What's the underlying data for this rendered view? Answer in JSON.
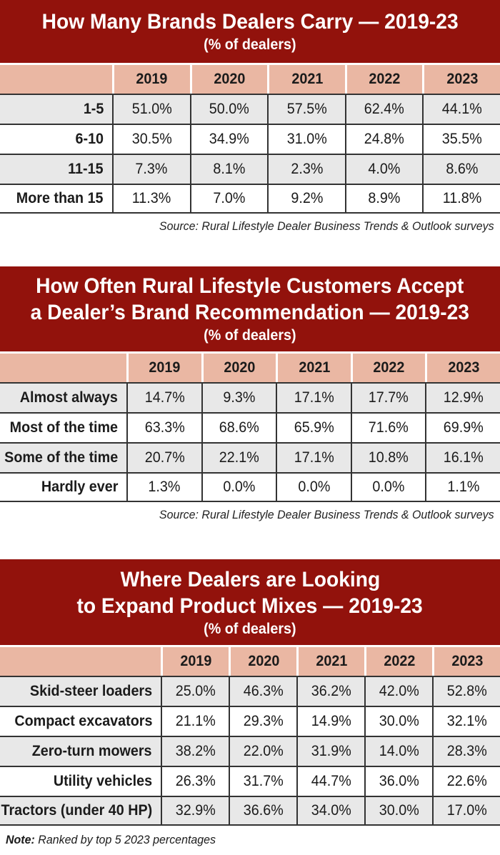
{
  "colors": {
    "banner_red": "#92120C",
    "header_salmon": "#EAB7A3",
    "row_gray": "#E8E8E8",
    "row_white": "#FFFFFF",
    "border_dark": "#333333",
    "banner_text": "#FFFFFF",
    "body_text": "#1B1B1B"
  },
  "tables": [
    {
      "title_lines": [
        "How Many Brands Dealers Carry — 2019-23"
      ],
      "subtitle": "(% of dealers)",
      "columns": [
        "",
        "2019",
        "2020",
        "2021",
        "2022",
        "2023"
      ],
      "rows": [
        {
          "label": "1-5",
          "values": [
            "51.0%",
            "50.0%",
            "57.5%",
            "62.4%",
            "44.1%"
          ]
        },
        {
          "label": "6-10",
          "values": [
            "30.5%",
            "34.9%",
            "31.0%",
            "24.8%",
            "35.5%"
          ]
        },
        {
          "label": "11-15",
          "values": [
            "7.3%",
            "8.1%",
            "2.3%",
            "4.0%",
            "8.6%"
          ]
        },
        {
          "label": "More than 15",
          "values": [
            "11.3%",
            "7.0%",
            "9.2%",
            "8.9%",
            "11.8%"
          ]
        }
      ],
      "source": "Source: Rural Lifestyle Dealer Business Trends & Outlook surveys"
    },
    {
      "title_lines": [
        "How Often Rural Lifestyle Customers Accept",
        "a Dealer’s Brand Recommendation — 2019-23"
      ],
      "subtitle": "(% of dealers)",
      "columns": [
        "",
        "2019",
        "2020",
        "2021",
        "2022",
        "2023"
      ],
      "rows": [
        {
          "label": "Almost always",
          "values": [
            "14.7%",
            "9.3%",
            "17.1%",
            "17.7%",
            "12.9%"
          ]
        },
        {
          "label": "Most of the time",
          "values": [
            "63.3%",
            "68.6%",
            "65.9%",
            "71.6%",
            "69.9%"
          ]
        },
        {
          "label": "Some of the time",
          "values": [
            "20.7%",
            "22.1%",
            "17.1%",
            "10.8%",
            "16.1%"
          ]
        },
        {
          "label": "Hardly ever",
          "values": [
            "1.3%",
            "0.0%",
            "0.0%",
            "0.0%",
            "1.1%"
          ]
        }
      ],
      "source": "Source: Rural Lifestyle Dealer Business Trends & Outlook surveys"
    },
    {
      "title_lines": [
        "Where Dealers are Looking",
        "to Expand Product Mixes — 2019-23"
      ],
      "subtitle": "(% of dealers)",
      "columns": [
        "",
        "2019",
        "2020",
        "2021",
        "2022",
        "2023"
      ],
      "rows": [
        {
          "label": "Skid-steer loaders",
          "values": [
            "25.0%",
            "46.3%",
            "36.2%",
            "42.0%",
            "52.8%"
          ]
        },
        {
          "label": "Compact excavators",
          "values": [
            "21.1%",
            "29.3%",
            "14.9%",
            "30.0%",
            "32.1%"
          ]
        },
        {
          "label": "Zero-turn mowers",
          "values": [
            "38.2%",
            "22.0%",
            "31.9%",
            "14.0%",
            "28.3%"
          ]
        },
        {
          "label": "Utility vehicles",
          "values": [
            "26.3%",
            "31.7%",
            "44.7%",
            "36.0%",
            "22.6%"
          ]
        },
        {
          "label": "Tractors (under 40 HP)",
          "values": [
            "32.9%",
            "36.6%",
            "34.0%",
            "30.0%",
            "17.0%"
          ]
        }
      ],
      "source": ""
    }
  ],
  "note": {
    "prefix": "Note:",
    "text": " Ranked by top 5 2023 percentages"
  },
  "chart_data": [
    {
      "type": "table",
      "title": "How Many Brands Dealers Carry — 2019-23",
      "subtitle": "(% of dealers)",
      "unit": "%",
      "categories": [
        "2019",
        "2020",
        "2021",
        "2022",
        "2023"
      ],
      "series": [
        {
          "name": "1-5",
          "values": [
            51.0,
            50.0,
            57.5,
            62.4,
            44.1
          ]
        },
        {
          "name": "6-10",
          "values": [
            30.5,
            34.9,
            31.0,
            24.8,
            35.5
          ]
        },
        {
          "name": "11-15",
          "values": [
            7.3,
            8.1,
            2.3,
            4.0,
            8.6
          ]
        },
        {
          "name": "More than 15",
          "values": [
            11.3,
            7.0,
            9.2,
            8.9,
            11.8
          ]
        }
      ],
      "source": "Source: Rural Lifestyle Dealer Business Trends & Outlook surveys"
    },
    {
      "type": "table",
      "title": "How Often Rural Lifestyle Customers Accept a Dealer’s Brand Recommendation — 2019-23",
      "subtitle": "(% of dealers)",
      "unit": "%",
      "categories": [
        "2019",
        "2020",
        "2021",
        "2022",
        "2023"
      ],
      "series": [
        {
          "name": "Almost always",
          "values": [
            14.7,
            9.3,
            17.1,
            17.7,
            12.9
          ]
        },
        {
          "name": "Most of the time",
          "values": [
            63.3,
            68.6,
            65.9,
            71.6,
            69.9
          ]
        },
        {
          "name": "Some of the time",
          "values": [
            20.7,
            22.1,
            17.1,
            10.8,
            16.1
          ]
        },
        {
          "name": "Hardly ever",
          "values": [
            1.3,
            0.0,
            0.0,
            0.0,
            1.1
          ]
        }
      ],
      "source": "Source: Rural Lifestyle Dealer Business Trends & Outlook surveys"
    },
    {
      "type": "table",
      "title": "Where Dealers are Looking to Expand Product Mixes — 2019-23",
      "subtitle": "(% of dealers)",
      "unit": "%",
      "categories": [
        "2019",
        "2020",
        "2021",
        "2022",
        "2023"
      ],
      "series": [
        {
          "name": "Skid-steer loaders",
          "values": [
            25.0,
            46.3,
            36.2,
            42.0,
            52.8
          ]
        },
        {
          "name": "Compact excavators",
          "values": [
            21.1,
            29.3,
            14.9,
            30.0,
            32.1
          ]
        },
        {
          "name": "Zero-turn mowers",
          "values": [
            38.2,
            22.0,
            31.9,
            14.0,
            28.3
          ]
        },
        {
          "name": "Utility vehicles",
          "values": [
            26.3,
            31.7,
            44.7,
            36.0,
            22.6
          ]
        },
        {
          "name": "Tractors (under 40 HP)",
          "values": [
            32.9,
            36.6,
            34.0,
            30.0,
            17.0
          ]
        }
      ],
      "note": "Note: Ranked by top 5 2023 percentages"
    }
  ]
}
